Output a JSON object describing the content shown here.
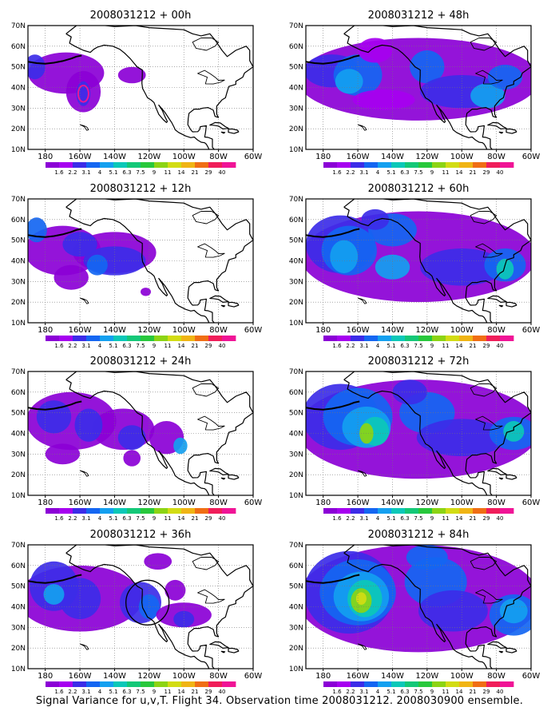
{
  "figure": {
    "footer": "Signal Variance for u,v,T. Flight 34. Observation time 2008031212. 2008030900 ensemble.",
    "lat_labels": [
      "70N",
      "60N",
      "50N",
      "40N",
      "30N",
      "20N",
      "10N"
    ],
    "lon_labels": [
      "180",
      "160W",
      "140W",
      "120W",
      "100W",
      "80W",
      "60W"
    ],
    "colorbar": {
      "labels": [
        "1.6",
        "2.2",
        "3.1",
        "4",
        "5.1",
        "6.3",
        "7.5",
        "9",
        "11",
        "14",
        "21",
        "29",
        "40"
      ],
      "colors": [
        "#8b00d6",
        "#a600f0",
        "#3c2ce8",
        "#1466f2",
        "#14a0f0",
        "#0cc8b8",
        "#14c878",
        "#28c83c",
        "#8cd414",
        "#d2dc14",
        "#f0b414",
        "#f06e14",
        "#f01e5a",
        "#f01496"
      ]
    },
    "panels": [
      {
        "title": "2008031212 + 00h"
      },
      {
        "title": "2008031212 + 48h"
      },
      {
        "title": "2008031212 + 12h"
      },
      {
        "title": "2008031212 + 60h"
      },
      {
        "title": "2008031212 + 24h"
      },
      {
        "title": "2008031212 + 72h"
      },
      {
        "title": "2008031212 + 36h"
      },
      {
        "title": "2008031212 + 84h"
      }
    ]
  }
}
